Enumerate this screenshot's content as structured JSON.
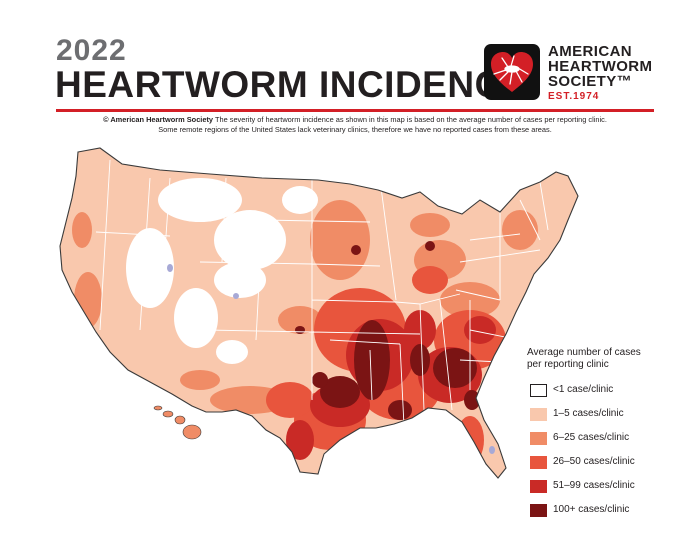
{
  "title": {
    "year": "2022",
    "main": "HEARTWORM INCIDENCE"
  },
  "logo": {
    "line1": "AMERICAN",
    "line2": "HEARTWORM",
    "line3": "SOCIETY™",
    "est": "EST.1974",
    "heart_color": "#d31f26"
  },
  "caption": {
    "credit": "© American Heartworm Society",
    "line1": " The severity of heartworm incidence as shown in this map is based on the average number of cases per reporting clinic.",
    "line2": "Some remote regions of the United States lack veterinary clinics, therefore we have no reported cases from these areas."
  },
  "legend": {
    "title_line1": "Average number of cases",
    "title_line2": "per reporting clinic",
    "items": [
      {
        "label": "<1 case/clinic",
        "color": "#ffffff"
      },
      {
        "label": "1–5 cases/clinic",
        "color": "#f9c8ad"
      },
      {
        "label": "6–25 cases/clinic",
        "color": "#f08c66"
      },
      {
        "label": "26–50 cases/clinic",
        "color": "#e8553d"
      },
      {
        "label": "51–99 cases/clinic",
        "color": "#c92a26"
      },
      {
        "label": "100+ cases/clinic",
        "color": "#7b1414"
      }
    ]
  },
  "map_colors": {
    "no_data": "#a7a9d6",
    "state_border": "#ffffff",
    "coast_border": "#3a3a3a"
  }
}
